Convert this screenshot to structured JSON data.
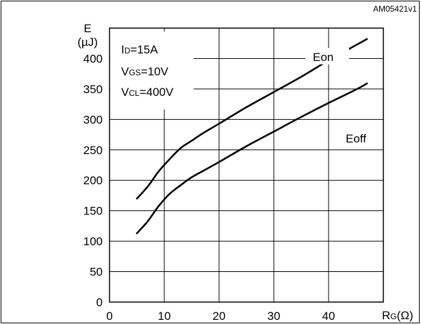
{
  "figure_code": "AM05421v1",
  "chart_data": {
    "type": "line",
    "ylabel": "E",
    "yunit": "(µJ)",
    "xlabel_main": "R",
    "xlabel_sub": "G",
    "xlabel_unit": "(Ω)",
    "xlim": [
      0,
      50
    ],
    "ylim": [
      0,
      450
    ],
    "xticks": [
      0,
      10,
      20,
      30,
      40
    ],
    "yticks": [
      0,
      50,
      100,
      150,
      200,
      250,
      300,
      350,
      400
    ],
    "grid": true,
    "conditions": [
      {
        "main": "I",
        "sub": "D",
        "rest": "=15A"
      },
      {
        "main": "V",
        "sub": "GS",
        "rest": "=10V"
      },
      {
        "main": "V",
        "sub": "CL",
        "rest": "=400V"
      }
    ],
    "series": [
      {
        "name": "Eon",
        "x": [
          5,
          7,
          9,
          11,
          13,
          15,
          17,
          20,
          25,
          30,
          35,
          40,
          45,
          47
        ],
        "y": [
          170,
          190,
          215,
          235,
          253,
          265,
          277,
          293,
          320,
          345,
          370,
          397,
          422,
          432
        ]
      },
      {
        "name": "Eoff",
        "x": [
          5,
          7,
          9,
          11,
          13,
          15,
          17,
          20,
          25,
          30,
          35,
          40,
          45,
          47
        ],
        "y": [
          113,
          133,
          158,
          178,
          192,
          205,
          215,
          230,
          256,
          280,
          304,
          327,
          349,
          359
        ]
      }
    ]
  }
}
